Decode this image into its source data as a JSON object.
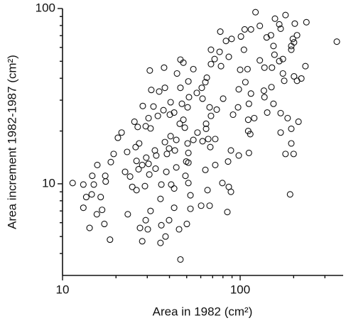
{
  "chart_data": {
    "type": "scatter",
    "x_label": "Area in 1982  (cm²)",
    "y_label": "Area increment 1982-1987  (cm²)",
    "xscale": "log",
    "yscale": "log",
    "xlim": [
      10,
      380
    ],
    "ylim": [
      3,
      100
    ],
    "xticks": [
      10,
      100
    ],
    "yticks": [
      10,
      100
    ],
    "xminorticks": [
      20,
      30,
      40,
      50,
      60,
      70,
      80,
      90,
      200,
      300
    ],
    "yminorticks": [
      4,
      5,
      6,
      7,
      8,
      9,
      20,
      30,
      40,
      50,
      60,
      70,
      80,
      90
    ],
    "color": "#111111",
    "x": [
      122,
      157,
      166,
      180,
      203,
      209,
      201,
      236,
      350,
      169,
      149,
      154,
      141,
      156,
      174,
      194,
      194,
      233,
      166,
      198,
      129,
      115,
      106,
      101,
      105,
      89.5,
      77.3,
      83.2,
      86.3,
      76.6,
      78.0,
      71.8,
      68.5,
      68.5,
      64.9,
      63.7,
      60.8,
      57.0,
      61.4,
      54.5,
      51.1,
      51.5,
      50.6,
      46.1,
      47.9,
      46.1,
      47.0,
      44.1,
      37.3,
      37.7,
      35.0,
      31.0,
      31.6,
      32.5,
      28.3,
      30.5,
      31.3,
      34.4,
      37.0,
      40.2,
      42.5,
      40.6,
      40.6,
      43.7,
      45.7,
      47.9,
      48.8,
      50.6,
      49.7,
      51.1,
      51.1,
      54.5,
      57.5,
      64.3,
      68.5,
      67.3,
      73.8,
      80.2,
      91.2,
      97.3,
      98.2,
      100,
      110,
      107,
      111,
      114,
      112,
      111,
      120,
      112,
      137,
      142,
      154,
      169,
      169,
      185,
      194,
      180,
      200,
      191,
      194,
      213,
      209,
      221,
      201,
      177,
      174,
      137,
      129,
      151,
      150,
      136,
      115,
      98.2,
      88.7,
      85.5,
      79.4,
      86.3,
      88.7,
      84.7,
      72.4,
      72.4,
      67.9,
      66.1,
      64.3,
      61.4,
      63.7,
      65.5,
      67.3,
      60.3,
      52.5,
      52.5,
      51.1,
      49.2,
      43.7,
      42.5,
      42.5,
      45.3,
      50.1,
      46.1,
      39.8,
      38.0,
      36.0,
      31.3,
      29.4,
      29.1,
      26.1,
      24.7,
      25.8,
      27.0,
      29.6,
      30.8,
      37.7,
      39.8,
      42.9,
      38.7,
      36.0,
      35.6,
      40.9,
      38.4,
      33.7,
      30.5,
      33.4,
      29.4,
      25.4,
      21.5,
      20.5,
      26.8,
      23.1,
      19.4,
      22.5,
      24.0,
      26.1,
      26.5,
      28.1,
      33.1,
      18.7,
      17.4,
      15.7,
      14.7,
      13.1,
      11.4,
      15.0,
      13.6,
      14.6,
      16.4,
      23.3,
      17.5,
      13.1,
      14.2,
      15.6,
      16.7,
      17.2,
      18.5,
      28.1,
      27.3,
      35.6,
      30.2
    ],
    "values": [
      95.3,
      87.5,
      81.2,
      91.8,
      82.0,
      70.4,
      64.1,
      83.5,
      64.7,
      76.7,
      70.4,
      61.1,
      68.4,
      54.5,
      51.5,
      58.2,
      61.1,
      46.9,
      50.1,
      67.1,
      79.6,
      76.0,
      76.0,
      69.2,
      58.2,
      67.1,
      73.8,
      65.3,
      53.0,
      56.6,
      46.9,
      51.5,
      58.2,
      48.2,
      40.3,
      38.0,
      35.3,
      33.0,
      30.6,
      45.1,
      38.4,
      31.2,
      27.3,
      51.1,
      49.1,
      35.3,
      28.6,
      42.6,
      46.0,
      35.3,
      33.6,
      44.3,
      34.3,
      27.6,
      27.8,
      23.7,
      20.7,
      24.4,
      26.3,
      24.8,
      25.5,
      29.2,
      18.7,
      17.8,
      22.0,
      23.2,
      20.9,
      17.0,
      13.4,
      15.0,
      13.2,
      17.8,
      19.6,
      22.0,
      24.4,
      27.3,
      26.5,
      30.6,
      24.8,
      27.3,
      34.6,
      44.7,
      45.1,
      38.0,
      23.2,
      19.2,
      15.0,
      20.0,
      23.7,
      28.6,
      31.2,
      25.5,
      28.6,
      25.3,
      19.6,
      23.7,
      20.6,
      14.8,
      14.8,
      8.7,
      17.0,
      22.6,
      38.7,
      39.9,
      41.0,
      38.7,
      42.6,
      46.0,
      50.6,
      46.0,
      35.6,
      34.0,
      32.7,
      14.5,
      15.5,
      13.4,
      10.1,
      9.6,
      9.0,
      6.9,
      12.8,
      18.0,
      16.2,
      18.0,
      20.6,
      17.5,
      12.0,
      9.2,
      7.5,
      7.5,
      7.2,
      8.6,
      10.1,
      11.1,
      12.4,
      9.4,
      7.3,
      5.5,
      5.9,
      3.7,
      6.2,
      5.0,
      5.8,
      7.0,
      6.2,
      9.7,
      9.2,
      9.6,
      16.2,
      17.0,
      14.1,
      11.3,
      17.3,
      15.9,
      15.5,
      14.8,
      9.9,
      8.2,
      9.9,
      11.7,
      14.5,
      13.0,
      12.2,
      21.3,
      22.6,
      19.6,
      18.3,
      12.1,
      15.2,
      14.8,
      11.7,
      11.0,
      13.5,
      21.1,
      12.8,
      15.5,
      13.3,
      11.1,
      12.8,
      11.1,
      9.9,
      10.1,
      9.9,
      8.4,
      8.7,
      8.4,
      6.7,
      10.3,
      7.3,
      5.6,
      6.7,
      7.1,
      5.9,
      4.8,
      4.7,
      5.6,
      4.6,
      5.5
    ]
  }
}
